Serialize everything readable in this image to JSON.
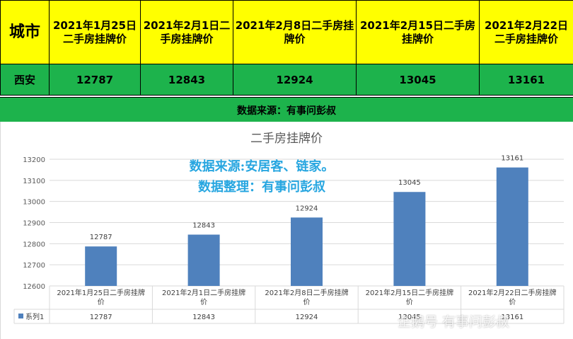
{
  "table": {
    "city_header": "城市",
    "date_headers": [
      "2021年1月25日二手房挂牌价",
      "2021年2月1日二手房挂牌价",
      "2021年2月8日二手房挂牌价",
      "2021年2月15日二手房挂牌价",
      "2021年2月22日二手房挂牌价"
    ],
    "city": "西安",
    "prices": [
      "12787",
      "12843",
      "12924",
      "13045",
      "13161"
    ]
  },
  "source_bar": "数据来源：有事问彭叔",
  "overlay": {
    "line1": "数据来源:安居客、链家。",
    "line2": "数据整理：有事问彭叔"
  },
  "watermark": "企鹅号 有事问彭叔",
  "colors": {
    "header_bg": "#ffff00",
    "green_bg": "#1db34c",
    "bar": "#4f81bd",
    "overlay_text": "#27a6e0"
  },
  "chart_data": {
    "type": "bar",
    "title": "二手房挂牌价",
    "categories": [
      "2021年1月25日二手房挂牌价",
      "2021年2月1日二手房挂牌价",
      "2021年2月8日二手房挂牌价",
      "2021年2月15日二手房挂牌价",
      "2021年2月22日二手房挂牌价"
    ],
    "series": [
      {
        "name": "系列1",
        "values": [
          12787,
          12843,
          12924,
          13045,
          13161
        ]
      }
    ],
    "ylim": [
      12600,
      13200
    ],
    "yticks": [
      12600,
      12700,
      12800,
      12900,
      13000,
      13100,
      13200
    ],
    "grid": true,
    "data_table": true
  }
}
